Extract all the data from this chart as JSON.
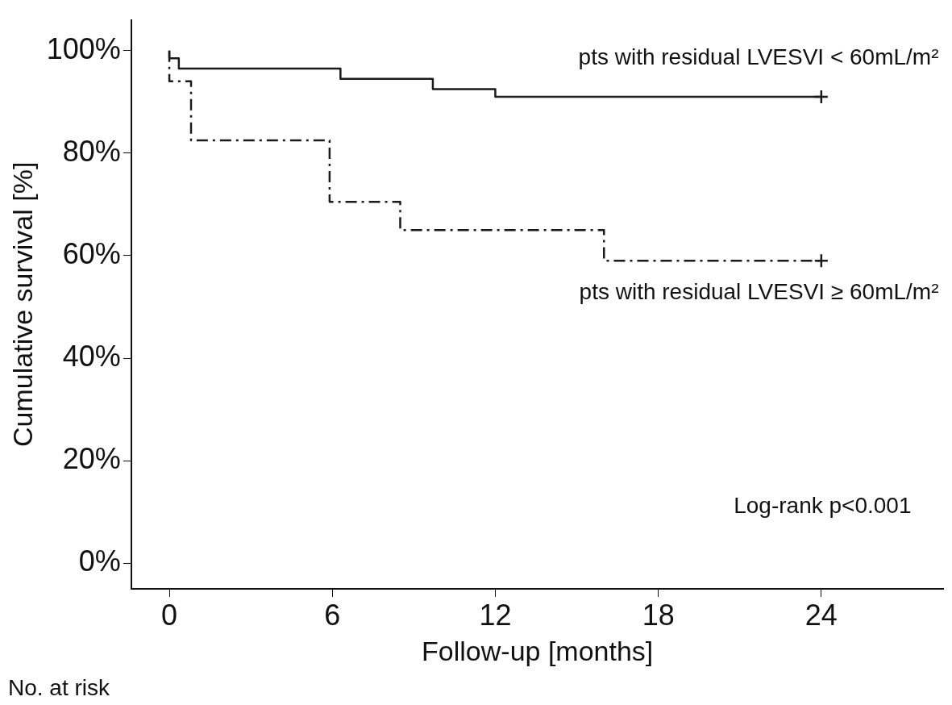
{
  "chart_data": {
    "type": "step",
    "xlabel": "Follow-up [months]",
    "ylabel": "Cumulative survival [%]",
    "xlim": [
      -1.4,
      28.5
    ],
    "xticks": [
      0,
      6,
      12,
      18,
      24
    ],
    "ylim": [
      -5,
      106
    ],
    "yticks": [
      {
        "value": 0,
        "label": "0%"
      },
      {
        "value": 20,
        "label": "20%"
      },
      {
        "value": 40,
        "label": "40%"
      },
      {
        "value": 60,
        "label": "60%"
      },
      {
        "value": 80,
        "label": "80%"
      },
      {
        "value": 100,
        "label": "100%"
      }
    ],
    "series": [
      {
        "name": "pts with residual LVESVI < 60mL/m²",
        "color": "#1a1a1a",
        "line_style": "solid",
        "x": [
          0,
          0.35,
          6.3,
          9.7,
          12,
          14.2,
          24
        ],
        "values": [
          100,
          98.5,
          96.5,
          94.5,
          92.5,
          91,
          91
        ]
      },
      {
        "name": "pts with residual LVESVI ≥ 60mL/m²",
        "color": "#1a1a1a",
        "line_style": "dashed",
        "x": [
          0,
          0.8,
          5.9,
          8.5,
          16,
          21.7,
          24
        ],
        "values": [
          100,
          94,
          82.5,
          70.5,
          65,
          59,
          59
        ]
      },
      {
        "type": "scatter",
        "marker": "cross",
        "color": "#1a1a1a",
        "x": [
          24,
          24
        ],
        "values": [
          91,
          59
        ]
      }
    ],
    "grid": false,
    "legend": false,
    "annotations": [
      "Log-rank p<0.001",
      "No. at risk"
    ]
  }
}
